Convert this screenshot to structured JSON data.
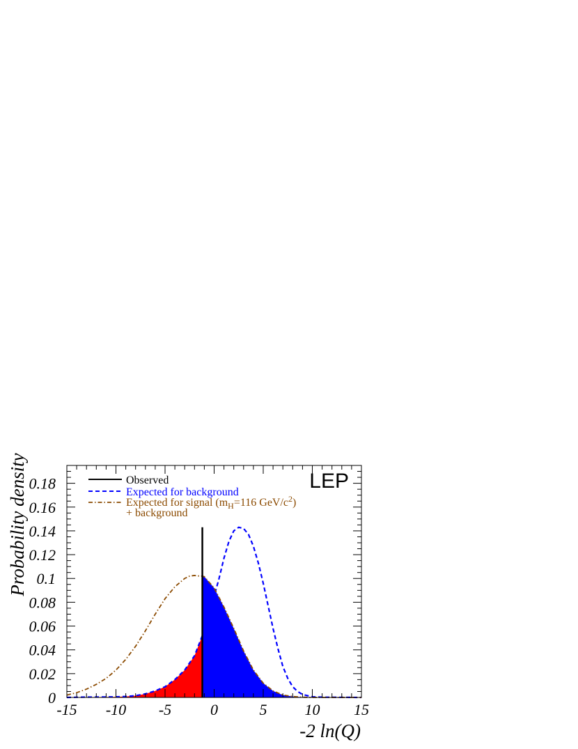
{
  "chart_data": {
    "type": "line",
    "ylabel": "Probability density",
    "xlabel": "-2 ln(Q)",
    "xlim": [
      -15,
      15
    ],
    "ylim": [
      0,
      0.195
    ],
    "x_ticks": [
      -15,
      -10,
      -5,
      0,
      5,
      10,
      15
    ],
    "x_tick_labels": [
      "-15",
      "-10",
      "-5",
      "0",
      "5",
      "10",
      "15"
    ],
    "y_ticks": [
      0,
      0.02,
      0.04,
      0.06,
      0.08,
      0.1,
      0.12,
      0.14,
      0.16,
      0.18
    ],
    "y_tick_labels": [
      "0",
      "0.02",
      "0.04",
      "0.06",
      "0.08",
      "0.1",
      "0.12",
      "0.14",
      "0.16",
      "0.18"
    ],
    "annotation": "LEP",
    "observed": {
      "label": "Observed",
      "x": -1.2,
      "y_top": 0.143,
      "color": "#000000"
    },
    "legend": {
      "observed": "Observed",
      "background": "Expected for background",
      "signal_main": "Expected for signal (m",
      "signal_sub": "H",
      "signal_mid": "=116 GeV/c",
      "signal_sup": "2",
      "signal_end": ")",
      "signal_line2": "+ background"
    },
    "series": [
      {
        "name": "Expected for background",
        "style": "dashed",
        "color": "#0000ff",
        "x": [
          -15,
          -13,
          -11,
          -10,
          -9,
          -8,
          -7,
          -6,
          -5,
          -4,
          -3,
          -2,
          -1.2,
          -1,
          -0.5,
          0,
          0.5,
          1,
          1.5,
          2,
          2.5,
          3,
          3.5,
          4,
          4.5,
          5,
          5.5,
          6,
          6.5,
          7,
          7.5,
          8,
          8.5,
          9,
          10,
          11,
          15
        ],
        "y": [
          0,
          0.0003,
          0.0004,
          0.0005,
          0.0008,
          0.0015,
          0.003,
          0.0055,
          0.009,
          0.015,
          0.023,
          0.035,
          0.052,
          0.058,
          0.072,
          0.085,
          0.1,
          0.117,
          0.131,
          0.14,
          0.143,
          0.142,
          0.137,
          0.127,
          0.113,
          0.096,
          0.077,
          0.058,
          0.041,
          0.026,
          0.016,
          0.009,
          0.005,
          0.0025,
          0.0006,
          0.0002,
          0
        ]
      },
      {
        "name": "Expected for signal (mH=116 GeV/c2) + background",
        "style": "dashdot",
        "color": "#8b4a00",
        "x": [
          -15,
          -14,
          -13,
          -12,
          -11,
          -10,
          -9,
          -8,
          -7,
          -6,
          -5,
          -4,
          -3,
          -2.5,
          -2,
          -1.5,
          -1.2,
          -1,
          0,
          1,
          2,
          3,
          4,
          5,
          6,
          7,
          8,
          9,
          10,
          15
        ],
        "y": [
          0.002,
          0.004,
          0.007,
          0.011,
          0.016,
          0.023,
          0.032,
          0.043,
          0.056,
          0.07,
          0.083,
          0.093,
          0.1,
          0.102,
          0.1025,
          0.102,
          0.102,
          0.1015,
          0.092,
          0.076,
          0.058,
          0.039,
          0.023,
          0.012,
          0.0055,
          0.002,
          0.0008,
          0.0002,
          0,
          0
        ]
      }
    ],
    "fills": [
      {
        "name": "region below observed",
        "color": "#ff0000",
        "x_from": -15,
        "x_to": -1.2,
        "under": "Expected for background"
      },
      {
        "name": "region above observed",
        "color": "#0000ff",
        "x_from": -1.2,
        "x_to": 15,
        "under": "Expected for signal (mH=116 GeV/c2) + background"
      }
    ]
  }
}
